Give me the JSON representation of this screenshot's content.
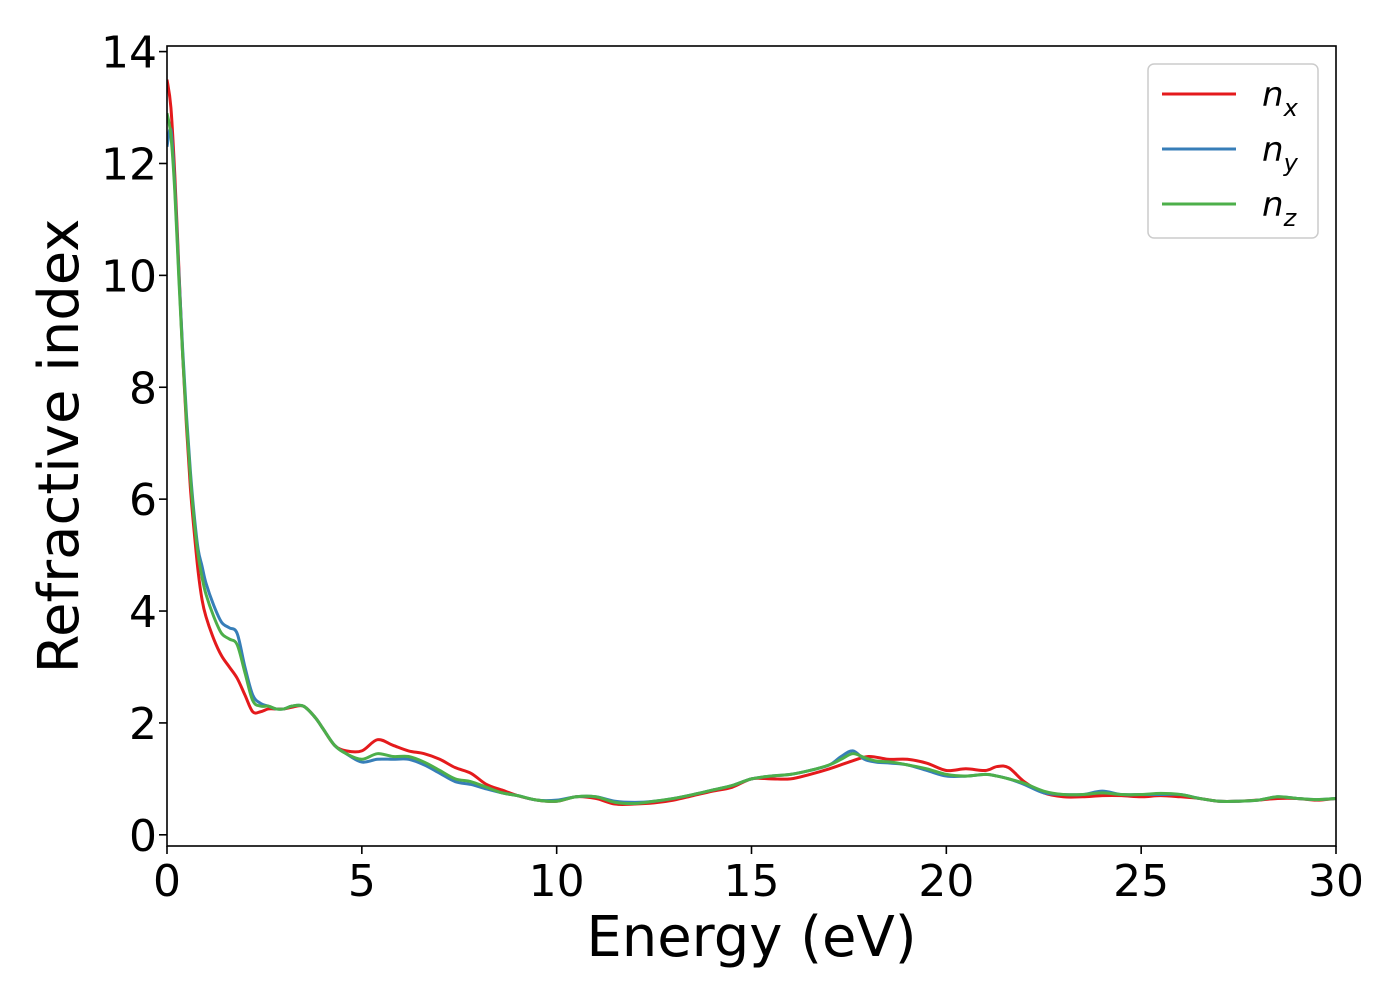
{
  "chart_data": {
    "type": "line",
    "title": "",
    "xlabel": "Energy (eV)",
    "ylabel": "Refractive index",
    "xlim": [
      0,
      30
    ],
    "ylim": [
      -0.2,
      14.1
    ],
    "xticks": [
      0,
      5,
      10,
      15,
      20,
      25,
      30
    ],
    "yticks": [
      0,
      2,
      4,
      6,
      8,
      10,
      12,
      14
    ],
    "grid": false,
    "legend_position": "top-right",
    "series": [
      {
        "name": "n_x",
        "label_base": "n",
        "label_sub": "x",
        "color": "#e41a1c",
        "x": [
          0,
          0.1,
          0.2,
          0.3,
          0.4,
          0.5,
          0.6,
          0.7,
          0.8,
          0.9,
          1.0,
          1.2,
          1.4,
          1.6,
          1.8,
          2.0,
          2.2,
          2.4,
          2.6,
          2.8,
          3.0,
          3.2,
          3.5,
          3.8,
          4.0,
          4.3,
          4.6,
          5.0,
          5.4,
          5.8,
          6.2,
          6.6,
          7.0,
          7.4,
          7.8,
          8.2,
          8.6,
          9.0,
          9.5,
          10.0,
          10.5,
          11.0,
          11.5,
          12.0,
          12.5,
          13.0,
          13.5,
          14.0,
          14.5,
          15.0,
          15.5,
          16.0,
          16.5,
          17.0,
          17.5,
          18.0,
          18.5,
          19.0,
          19.5,
          20.0,
          20.5,
          21.0,
          21.3,
          21.6,
          22.0,
          22.5,
          23.0,
          23.5,
          24.0,
          24.5,
          25.0,
          25.5,
          26.0,
          26.5,
          27.0,
          27.5,
          28.0,
          28.5,
          29.0,
          29.5,
          30.0
        ],
        "y": [
          13.5,
          13.0,
          11.8,
          10.2,
          8.6,
          7.3,
          6.2,
          5.4,
          4.7,
          4.2,
          3.9,
          3.5,
          3.2,
          3.0,
          2.8,
          2.5,
          2.2,
          2.2,
          2.25,
          2.25,
          2.25,
          2.28,
          2.3,
          2.1,
          1.9,
          1.6,
          1.5,
          1.5,
          1.7,
          1.6,
          1.5,
          1.45,
          1.35,
          1.2,
          1.1,
          0.9,
          0.8,
          0.7,
          0.62,
          0.6,
          0.68,
          0.65,
          0.55,
          0.55,
          0.57,
          0.62,
          0.7,
          0.78,
          0.85,
          1.0,
          1.0,
          1.0,
          1.08,
          1.18,
          1.3,
          1.4,
          1.35,
          1.35,
          1.28,
          1.15,
          1.18,
          1.15,
          1.22,
          1.2,
          0.95,
          0.75,
          0.68,
          0.68,
          0.7,
          0.7,
          0.68,
          0.7,
          0.68,
          0.65,
          0.6,
          0.6,
          0.62,
          0.65,
          0.65,
          0.62,
          0.65
        ]
      },
      {
        "name": "n_y",
        "label_base": "n",
        "label_sub": "y",
        "color": "#377eb8",
        "x": [
          0,
          0.1,
          0.2,
          0.3,
          0.4,
          0.5,
          0.6,
          0.7,
          0.8,
          0.9,
          1.0,
          1.2,
          1.4,
          1.6,
          1.8,
          2.0,
          2.2,
          2.4,
          2.6,
          2.8,
          3.0,
          3.2,
          3.5,
          3.8,
          4.0,
          4.3,
          4.6,
          5.0,
          5.4,
          5.8,
          6.2,
          6.6,
          7.0,
          7.4,
          7.8,
          8.2,
          8.6,
          9.0,
          9.5,
          10.0,
          10.5,
          11.0,
          11.5,
          12.0,
          12.5,
          13.0,
          13.5,
          14.0,
          14.5,
          15.0,
          15.5,
          16.0,
          16.5,
          17.0,
          17.3,
          17.6,
          17.9,
          18.2,
          18.6,
          19.0,
          19.5,
          20.0,
          20.5,
          21.0,
          21.3,
          21.6,
          22.0,
          22.5,
          23.0,
          23.5,
          24.0,
          24.5,
          25.0,
          25.5,
          26.0,
          26.5,
          27.0,
          27.5,
          28.0,
          28.5,
          29.0,
          29.5,
          30.0
        ],
        "y": [
          12.3,
          12.6,
          11.6,
          10.1,
          8.7,
          7.5,
          6.5,
          5.7,
          5.1,
          4.8,
          4.5,
          4.1,
          3.8,
          3.7,
          3.6,
          3.0,
          2.5,
          2.35,
          2.3,
          2.25,
          2.25,
          2.3,
          2.3,
          2.1,
          1.9,
          1.6,
          1.45,
          1.3,
          1.35,
          1.35,
          1.35,
          1.25,
          1.1,
          0.95,
          0.9,
          0.82,
          0.75,
          0.7,
          0.62,
          0.62,
          0.68,
          0.68,
          0.6,
          0.58,
          0.6,
          0.65,
          0.72,
          0.8,
          0.88,
          1.0,
          1.05,
          1.08,
          1.15,
          1.25,
          1.4,
          1.5,
          1.35,
          1.3,
          1.28,
          1.25,
          1.15,
          1.05,
          1.05,
          1.08,
          1.05,
          1.0,
          0.9,
          0.75,
          0.72,
          0.72,
          0.78,
          0.72,
          0.72,
          0.72,
          0.72,
          0.65,
          0.6,
          0.6,
          0.62,
          0.68,
          0.65,
          0.63,
          0.65
        ]
      },
      {
        "name": "n_z",
        "label_base": "n",
        "label_sub": "z",
        "color": "#4daf4a",
        "x": [
          0,
          0.1,
          0.2,
          0.3,
          0.4,
          0.5,
          0.6,
          0.7,
          0.8,
          0.9,
          1.0,
          1.2,
          1.4,
          1.6,
          1.8,
          2.0,
          2.2,
          2.4,
          2.6,
          2.8,
          3.0,
          3.2,
          3.5,
          3.8,
          4.0,
          4.3,
          4.6,
          5.0,
          5.4,
          5.8,
          6.2,
          6.6,
          7.0,
          7.4,
          7.8,
          8.2,
          8.6,
          9.0,
          9.5,
          10.0,
          10.5,
          11.0,
          11.5,
          12.0,
          12.5,
          13.0,
          13.5,
          14.0,
          14.5,
          15.0,
          15.5,
          16.0,
          16.5,
          17.0,
          17.3,
          17.6,
          17.9,
          18.2,
          18.6,
          19.0,
          19.5,
          20.0,
          20.5,
          21.0,
          21.3,
          21.6,
          22.0,
          22.5,
          23.0,
          23.5,
          24.0,
          24.5,
          25.0,
          25.5,
          26.0,
          26.5,
          27.0,
          27.5,
          28.0,
          28.5,
          29.0,
          29.5,
          30.0
        ],
        "y": [
          12.9,
          12.5,
          11.5,
          10.0,
          8.6,
          7.4,
          6.4,
          5.6,
          5.0,
          4.6,
          4.3,
          3.9,
          3.6,
          3.5,
          3.4,
          2.9,
          2.4,
          2.3,
          2.3,
          2.25,
          2.25,
          2.3,
          2.3,
          2.1,
          1.9,
          1.6,
          1.45,
          1.35,
          1.45,
          1.4,
          1.4,
          1.3,
          1.15,
          1.0,
          0.95,
          0.85,
          0.75,
          0.7,
          0.62,
          0.6,
          0.68,
          0.68,
          0.58,
          0.56,
          0.6,
          0.65,
          0.72,
          0.8,
          0.88,
          1.0,
          1.05,
          1.08,
          1.15,
          1.25,
          1.35,
          1.45,
          1.38,
          1.32,
          1.3,
          1.25,
          1.18,
          1.08,
          1.05,
          1.08,
          1.05,
          1.0,
          0.92,
          0.78,
          0.72,
          0.72,
          0.75,
          0.72,
          0.72,
          0.74,
          0.72,
          0.65,
          0.6,
          0.6,
          0.62,
          0.68,
          0.65,
          0.63,
          0.65
        ]
      }
    ]
  }
}
